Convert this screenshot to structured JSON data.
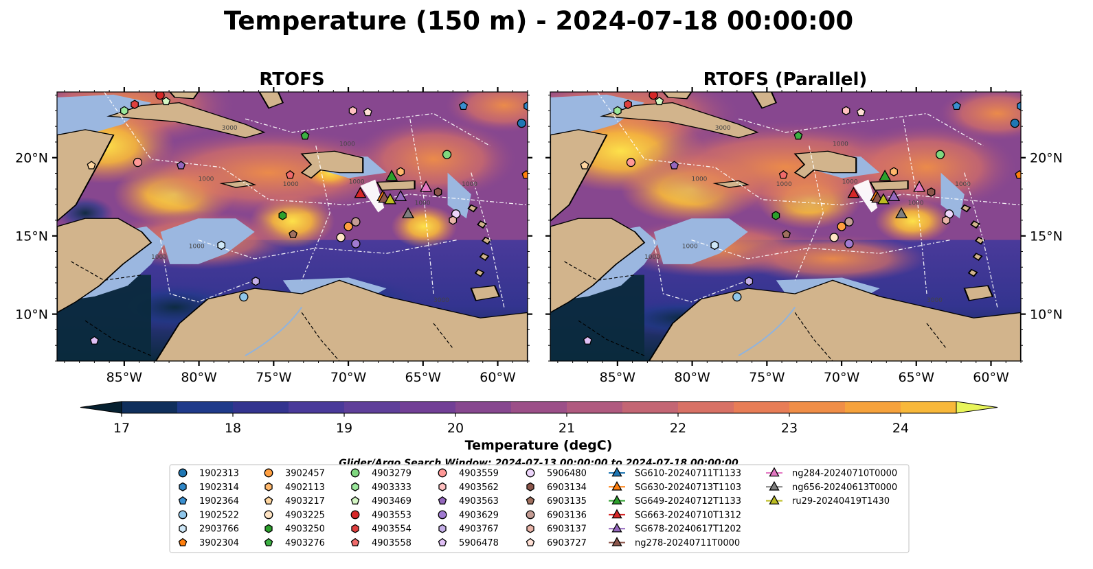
{
  "title": "Temperature (150 m) - 2024-07-18 00:00:00",
  "chart_data": {
    "type": "heatmap",
    "variable": "Temperature",
    "depth_m": 150,
    "time": "2024-07-18 00:00:00",
    "panels": [
      {
        "title": "RTOFS",
        "y_labels": "left"
      },
      {
        "title": "RTOFS (Parallel)",
        "y_labels": "right"
      }
    ],
    "lon_range": [
      -89.5,
      -58
    ],
    "lat_range": [
      7,
      24.2
    ],
    "x_ticks": [
      -85,
      -80,
      -75,
      -70,
      -65,
      -60
    ],
    "x_tick_labels": [
      "85°W",
      "80°W",
      "75°W",
      "70°W",
      "65°W",
      "60°W"
    ],
    "y_ticks": [
      10,
      15,
      20
    ],
    "y_tick_labels": [
      "10°N",
      "15°N",
      "20°N"
    ],
    "colorbar": {
      "label": "Temperature (degC)",
      "min": 17,
      "max": 24.5,
      "step": 0.5,
      "extend": "both",
      "ticks": [
        17,
        18,
        19,
        20,
        21,
        22,
        23,
        24
      ],
      "colors": [
        "#0b2a3d",
        "#102f5c",
        "#1f3a8a",
        "#33348f",
        "#4a3a9a",
        "#5f3f9a",
        "#723f96",
        "#87478f",
        "#9c4f88",
        "#b05a7f",
        "#c46674",
        "#d87165",
        "#e87d56",
        "#f08e47",
        "#f6a23c",
        "#f8b83a",
        "#fde14a"
      ],
      "under_color": "#062030",
      "over_color": "#e8f55a"
    },
    "contours": [
      "1000",
      "1000",
      "1000",
      "1000",
      "1000",
      "3000",
      "3000",
      "1000",
      "1000",
      "1000"
    ],
    "search_window": "Glider/Argo Search Window: 2024-07-13 00:00:00 to 2024-07-18 00:00:00",
    "argo_floats": [
      {
        "id": "1902313",
        "lon": -58.4,
        "lat": 22.2,
        "marker": "circle",
        "color": "#1f77b4"
      },
      {
        "id": "1902314",
        "lon": -58.0,
        "lat": 23.3,
        "marker": "hexagon",
        "color": "#2f87c8"
      },
      {
        "id": "1902364",
        "lon": -62.3,
        "lat": 23.3,
        "marker": "pentagon",
        "color": "#3a8fd0"
      },
      {
        "id": "1902522",
        "lon": -77.0,
        "lat": 11.1,
        "marker": "circle",
        "color": "#8fc6ea"
      },
      {
        "id": "2903766",
        "lon": -78.5,
        "lat": 14.4,
        "marker": "hexagon",
        "color": "#cfe8f8"
      },
      {
        "id": "3902304",
        "lon": -58.1,
        "lat": 18.9,
        "marker": "pentagon",
        "color": "#ff7f0e"
      },
      {
        "id": "3902457",
        "lon": -70.0,
        "lat": 15.6,
        "marker": "circle",
        "color": "#ff9f40"
      },
      {
        "id": "4902113",
        "lon": -66.5,
        "lat": 19.1,
        "marker": "hexagon",
        "color": "#ffb86c"
      },
      {
        "id": "4903217",
        "lon": -87.2,
        "lat": 19.5,
        "marker": "pentagon",
        "color": "#ffd6a0"
      },
      {
        "id": "4903225",
        "lon": -70.5,
        "lat": 14.9,
        "marker": "circle",
        "color": "#ffe4c4"
      },
      {
        "id": "4903250",
        "lon": -74.4,
        "lat": 16.3,
        "marker": "hexagon",
        "color": "#2ca02c"
      },
      {
        "id": "4903276",
        "lon": -72.9,
        "lat": 21.4,
        "marker": "pentagon",
        "color": "#3cb043"
      },
      {
        "id": "4903279",
        "lon": -63.4,
        "lat": 20.2,
        "marker": "circle",
        "color": "#7fd77f"
      },
      {
        "id": "4903333",
        "lon": -85.0,
        "lat": 23.0,
        "marker": "hexagon",
        "color": "#9be89b"
      },
      {
        "id": "4903469",
        "lon": -82.2,
        "lat": 23.6,
        "marker": "pentagon",
        "color": "#d4f7c4"
      },
      {
        "id": "4903553",
        "lon": -82.6,
        "lat": 24.0,
        "marker": "circle",
        "color": "#d62728"
      },
      {
        "id": "4903554",
        "lon": -84.3,
        "lat": 23.4,
        "marker": "hexagon",
        "color": "#e0403f"
      },
      {
        "id": "4903558",
        "lon": -73.9,
        "lat": 18.9,
        "marker": "pentagon",
        "color": "#ef6a6a"
      },
      {
        "id": "4903559",
        "lon": -84.1,
        "lat": 19.7,
        "marker": "circle",
        "color": "#ff9896"
      },
      {
        "id": "4903562",
        "lon": -69.7,
        "lat": 23.0,
        "marker": "hexagon",
        "color": "#ffc0c0"
      },
      {
        "id": "4903563",
        "lon": -81.2,
        "lat": 19.5,
        "marker": "pentagon",
        "color": "#9467bd"
      },
      {
        "id": "4903629",
        "lon": -69.5,
        "lat": 14.5,
        "marker": "circle",
        "color": "#a07ad0"
      },
      {
        "id": "4903767",
        "lon": -76.2,
        "lat": 12.1,
        "marker": "hexagon",
        "color": "#c5b0e8"
      },
      {
        "id": "5906478",
        "lon": -87.0,
        "lat": 8.3,
        "marker": "pentagon",
        "color": "#e0c0f5"
      },
      {
        "id": "5906480",
        "lon": -62.8,
        "lat": 16.4,
        "marker": "circle",
        "color": "#ecd5fa"
      },
      {
        "id": "6903134",
        "lon": -64.0,
        "lat": 17.8,
        "marker": "hexagon",
        "color": "#8c564b"
      },
      {
        "id": "6903135",
        "lon": -73.7,
        "lat": 15.1,
        "marker": "pentagon",
        "color": "#a0705f"
      },
      {
        "id": "6903136",
        "lon": -69.5,
        "lat": 15.9,
        "marker": "circle",
        "color": "#c49c94"
      },
      {
        "id": "6903137",
        "lon": -63.0,
        "lat": 16.0,
        "marker": "hexagon",
        "color": "#e8b4a8"
      },
      {
        "id": "6903727",
        "lon": -68.7,
        "lat": 22.9,
        "marker": "pentagon",
        "color": "#ffe0d5"
      }
    ],
    "gliders": [
      {
        "id": "SG610-20240711T1133",
        "color": "#1f77b4",
        "lon": null,
        "lat": null
      },
      {
        "id": "SG630-20240713T1103",
        "color": "#ff7f0e",
        "lon": -67.7,
        "lat": 17.5
      },
      {
        "id": "SG649-20240712T1133",
        "color": "#2ca02c",
        "lon": -67.1,
        "lat": 18.8
      },
      {
        "id": "SG663-20240710T1312",
        "color": "#d62728",
        "lon": -69.2,
        "lat": 17.7
      },
      {
        "id": "SG678-20240617T1202",
        "color": "#9467bd",
        "lon": -66.5,
        "lat": 17.5
      },
      {
        "id": "ng278-20240711T0000",
        "color": "#8c564b",
        "lon": -67.6,
        "lat": 17.4
      },
      {
        "id": "ng284-20240710T0000",
        "color": "#e377c2",
        "lon": -64.8,
        "lat": 18.1
      },
      {
        "id": "ng656-20240613T0000",
        "color": "#7f7f7f",
        "lon": -66.0,
        "lat": 16.4
      },
      {
        "id": "ru29-20240419T1430",
        "color": "#bcbd22",
        "lon": -67.2,
        "lat": 17.3
      }
    ]
  },
  "colors": {
    "land": "#d2b48c",
    "shelf": "#9bb7e0",
    "coast": "#000000",
    "boundary": "#ffffff"
  }
}
